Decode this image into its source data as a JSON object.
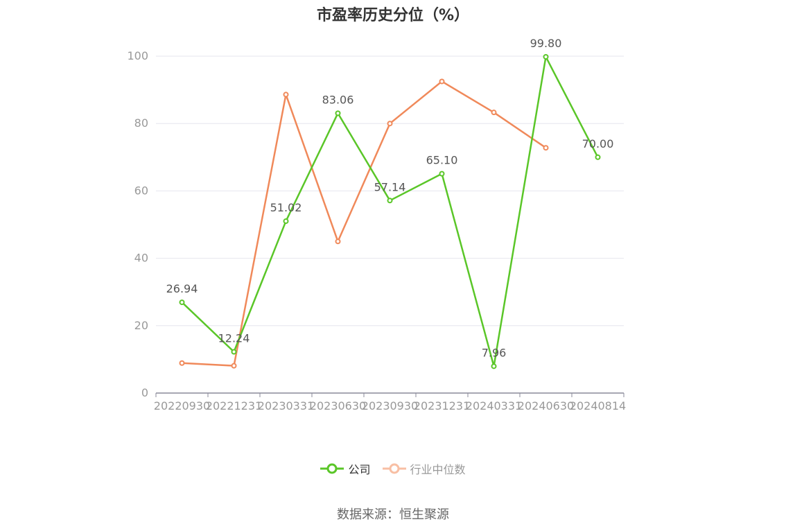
{
  "chart_data": {
    "type": "line",
    "title": "市盈率历史分位（%）",
    "categories": [
      "20220930",
      "20221231",
      "20230331",
      "20230630",
      "20230930",
      "20231231",
      "20240331",
      "20240630",
      "20240814"
    ],
    "y_ticks": [
      "0",
      "20",
      "40",
      "60",
      "80",
      "100"
    ],
    "ylim": [
      0,
      100
    ],
    "grid": true,
    "legend_position": "bottom",
    "series": [
      {
        "name": "公司",
        "color": "#5ac628",
        "values": [
          26.94,
          12.24,
          51.02,
          83.06,
          57.14,
          65.1,
          7.96,
          99.8,
          70.0
        ],
        "labels": [
          "26.94",
          "12.24",
          "51.02",
          "83.06",
          "57.14",
          "65.10",
          "7.96",
          "99.80",
          "70.00"
        ]
      },
      {
        "name": "行业中位数",
        "color": "#f0895a",
        "legend_color": "#f8bfa4",
        "values": [
          8.9,
          8.1,
          88.6,
          45.0,
          80.0,
          92.5,
          83.3,
          72.8,
          null
        ]
      }
    ]
  },
  "source": "数据来源：恒生聚源"
}
